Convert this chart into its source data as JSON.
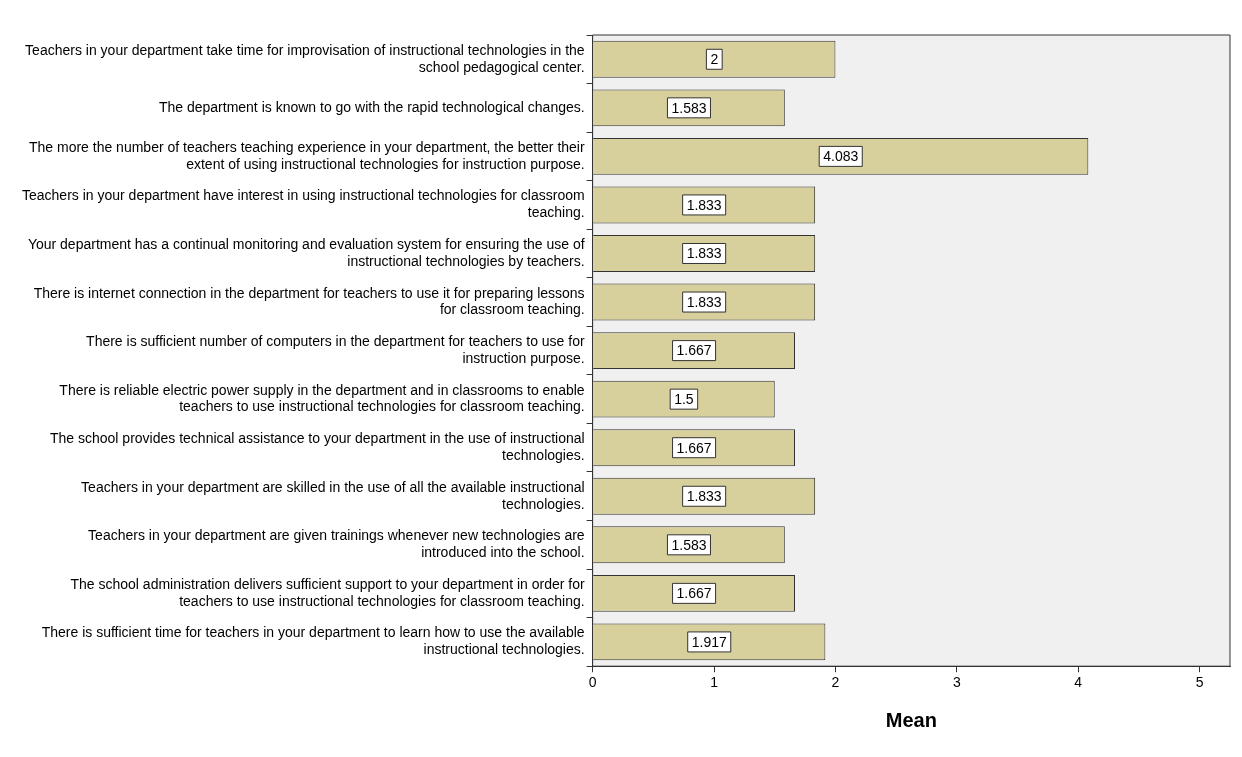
{
  "chart_data": {
    "type": "bar",
    "orientation": "horizontal",
    "xlabel": "Mean",
    "categories": [
      "Teachers in your department take time for improvisation of instructional technologies in the school pedagogical center.",
      "The department is known to go with the rapid technological changes.",
      "The more the number of teachers teaching experience in your department, the better their extent of using instructional technologies for instruction purpose.",
      "Teachers in your department have interest in using instructional technologies for classroom teaching.",
      "Your department has a continual monitoring and evaluation system for ensuring the use of instructional technologies by teachers.",
      "There is internet connection in the department for teachers to use it for preparing lessons for classroom teaching.",
      "There is sufficient number of computers in the department for teachers to use for instruction purpose.",
      "There is reliable electric power supply in the department and in classrooms to enable teachers to use instructional technologies for classroom teaching.",
      "The school provides technical assistance to your department in the use of instructional technologies.",
      "Teachers in your department are skilled in the use of all the available instructional technologies.",
      "Teachers in your department are given trainings whenever new technologies are introduced into the school.",
      "The school administration delivers sufficient support to your department in order for teachers to use instructional technologies for classroom teaching.",
      "There is sufficient time for teachers in your department to learn how to use the available instructional technologies."
    ],
    "values": [
      2,
      1.583,
      4.083,
      1.833,
      1.833,
      1.833,
      1.667,
      1.5,
      1.667,
      1.833,
      1.583,
      1.667,
      1.917
    ],
    "color": "#d8d09c",
    "xlim": [
      0,
      5.25
    ],
    "xticks": [
      0,
      1,
      2,
      3,
      4,
      5
    ],
    "data_labels": true,
    "legend": false
  }
}
